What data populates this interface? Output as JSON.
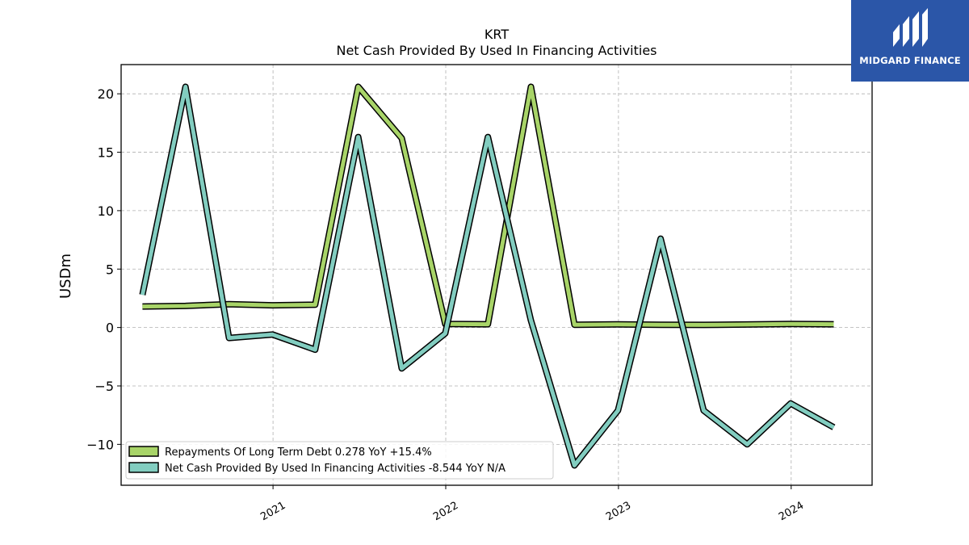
{
  "chart_data": {
    "type": "line",
    "title": "KRT",
    "subtitle": "Net Cash Provided By Used In Financing Activities",
    "ylabel": "USDm",
    "xlabel": "",
    "ylim": [
      -13.5,
      22.5
    ],
    "yticks": [
      -10,
      -5,
      0,
      5,
      10,
      15,
      20
    ],
    "ytick_labels": [
      "−10",
      "−5",
      "0",
      "5",
      "10",
      "15",
      "20"
    ],
    "xlim": [
      "2020-02-15",
      "2024-06-20"
    ],
    "xticks": [
      "2021-01-01",
      "2022-01-01",
      "2023-01-01",
      "2024-01-01"
    ],
    "xtick_labels": [
      "2021",
      "2022",
      "2023",
      "2024"
    ],
    "grid": true,
    "legend_position": "lower-left",
    "x": [
      "2020-03-31",
      "2020-06-30",
      "2020-09-30",
      "2020-12-31",
      "2021-03-31",
      "2021-06-30",
      "2021-09-30",
      "2021-12-31",
      "2022-03-31",
      "2022-06-30",
      "2022-09-30",
      "2022-12-31",
      "2023-03-31",
      "2023-06-30",
      "2023-09-30",
      "2023-12-31",
      "2024-03-31"
    ],
    "series": [
      {
        "name": "Repayments Of Long Term Debt",
        "legend_label": "Repayments Of Long Term Debt  0.278 YoY +15.4%",
        "color": "#a8d468",
        "values": [
          1.8,
          1.85,
          2.0,
          1.9,
          1.95,
          20.6,
          16.2,
          0.3,
          0.28,
          20.6,
          0.24,
          0.27,
          0.24,
          0.22,
          0.26,
          0.3,
          0.278
        ]
      },
      {
        "name": "Net Cash Provided By Used In Financing Activities",
        "legend_label": "Net Cash Provided By Used In Financing Activities  -8.544 YoY N/A",
        "color": "#82cdc0",
        "values": [
          2.8,
          20.6,
          -0.9,
          -0.6,
          -1.9,
          16.3,
          -3.5,
          -0.5,
          16.3,
          0.6,
          -11.8,
          -7.1,
          7.6,
          -7.1,
          -10.0,
          -6.5,
          -8.544
        ]
      }
    ]
  },
  "logo": {
    "text": "MIDGARD FINANCE",
    "color": "#2b56a8"
  }
}
